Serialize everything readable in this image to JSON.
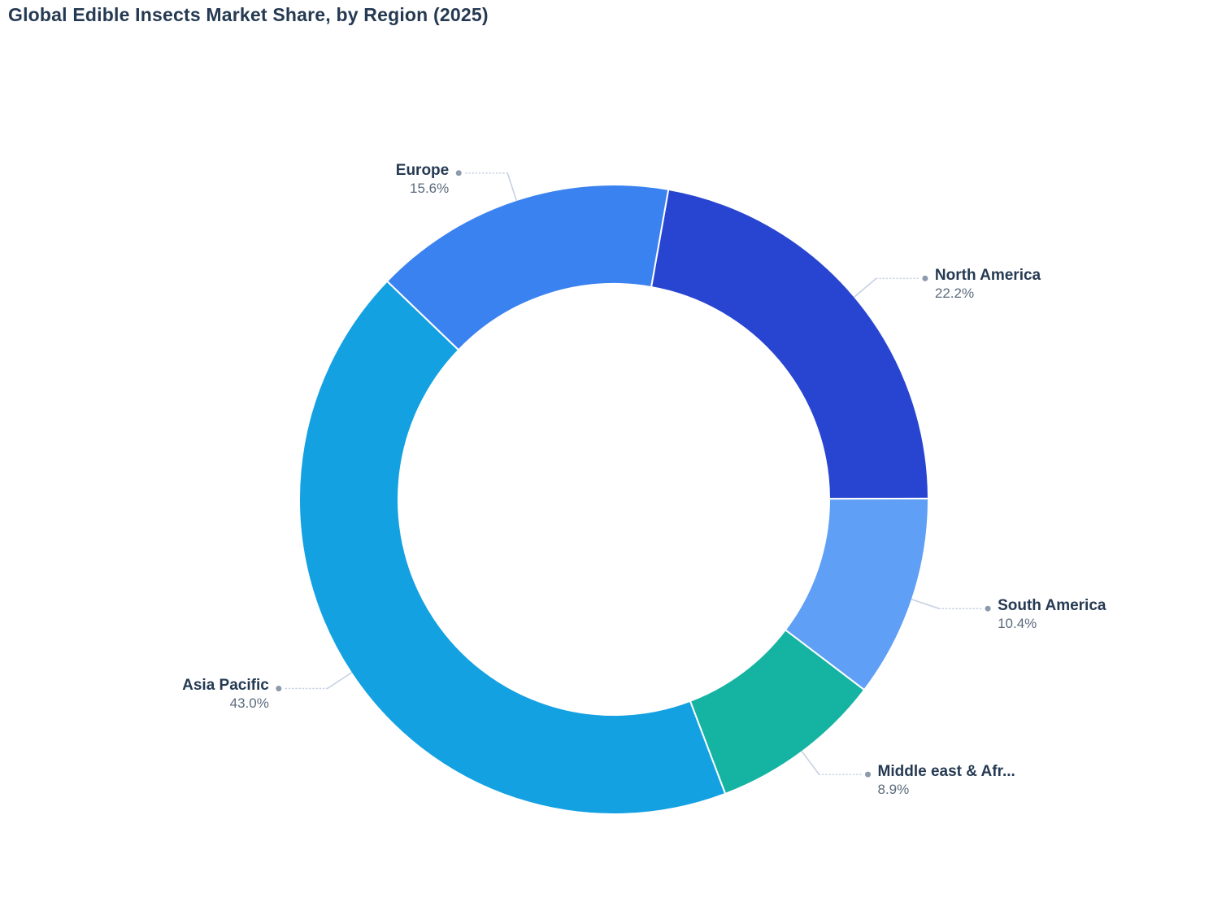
{
  "page": {
    "background": "#ffffff"
  },
  "chart_data": {
    "type": "pie",
    "subtype": "donut",
    "title": "Global Edible Insects Market Share, by Region (2025)",
    "hole_ratio": 0.685,
    "rotation_deg": 10,
    "direction": "clockwise",
    "labels_position": "outside-with-leader-lines",
    "legend": "none",
    "slices": [
      {
        "label": "North America",
        "value": 22.2,
        "pct_text": "22.2%",
        "color": "#2845d2"
      },
      {
        "label": "South America",
        "value": 10.4,
        "pct_text": "10.4%",
        "color": "#5f9ff5"
      },
      {
        "label": "Middle east & Afr...",
        "value": 8.9,
        "pct_text": "8.9%",
        "color": "#15b3a2"
      },
      {
        "label": "Asia Pacific",
        "value": 43.0,
        "pct_text": "43.0%",
        "color": "#13a1e2"
      },
      {
        "label": "Europe",
        "value": 15.6,
        "pct_text": "15.6%",
        "color": "#3b82f1"
      }
    ],
    "styles": {
      "title_color": "#253a52",
      "label_color": "#253a52",
      "pct_color": "#5c6b7c",
      "leader_line_color": "#c8d2e3",
      "dot_color": "#8d99ad",
      "separator_color": "#ffffff"
    }
  }
}
